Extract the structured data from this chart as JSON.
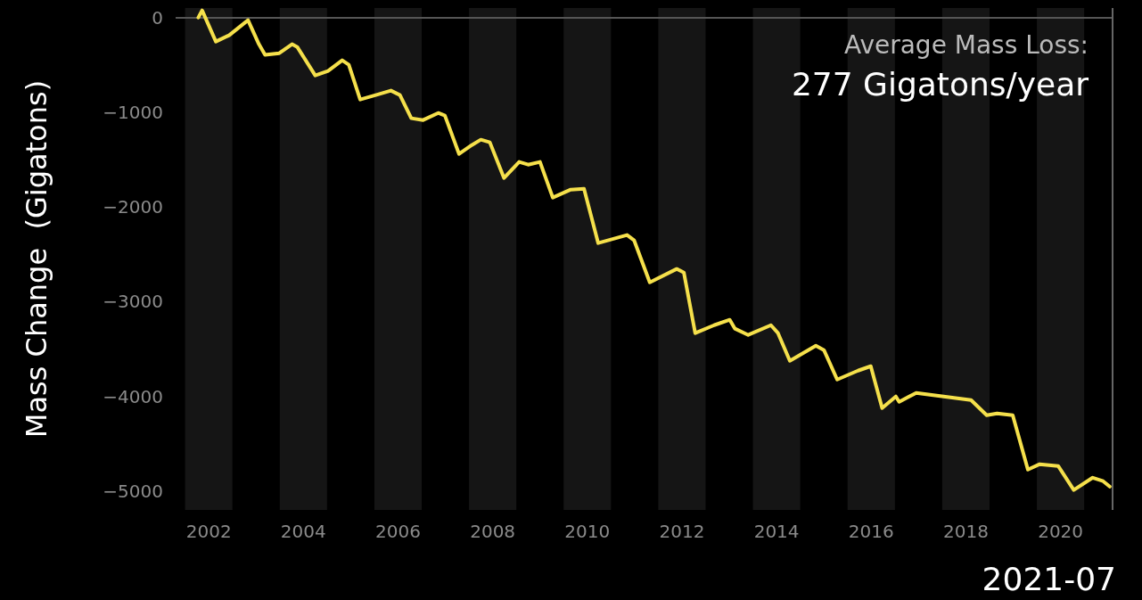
{
  "chart_data": {
    "type": "line",
    "ylabel": "Mass Change  (Gigatons)",
    "annotations": [
      "Average Mass Loss:",
      "277 Gigatons/year",
      "2021-07"
    ],
    "x": [
      2002.28,
      2002.36,
      2002.65,
      2002.93,
      2003.33,
      2003.56,
      2003.69,
      2003.99,
      2004.26,
      2004.37,
      2004.75,
      2005.02,
      2005.32,
      2005.46,
      2005.7,
      2006.03,
      2006.35,
      2006.54,
      2006.78,
      2007.03,
      2007.35,
      2007.49,
      2007.79,
      2008.06,
      2008.25,
      2008.44,
      2008.74,
      2009.06,
      2009.25,
      2009.5,
      2009.77,
      2010.15,
      2010.43,
      2010.73,
      2011.34,
      2011.49,
      2011.82,
      2012.39,
      2012.54,
      2012.78,
      2013.18,
      2013.51,
      2013.62,
      2013.9,
      2014.38,
      2014.53,
      2014.78,
      2015.33,
      2015.5,
      2015.78,
      2016.22,
      2016.49,
      2016.73,
      2017.02,
      2017.09,
      2017.45,
      2018.61,
      2018.94,
      2019.16,
      2019.49,
      2019.81,
      2020.06,
      2020.45,
      2020.78,
      2021.18,
      2021.4,
      2021.54
    ],
    "series": [
      {
        "color": "#f5e04b",
        "values": [
          0,
          75,
          -254,
          -188,
          -28,
          -282,
          -395,
          -377,
          -282,
          -311,
          -612,
          -565,
          -452,
          -499,
          -866,
          -819,
          -772,
          -819,
          -1064,
          -1083,
          -1008,
          -1036,
          -1441,
          -1347,
          -1290,
          -1318,
          -1695,
          -1525,
          -1554,
          -1525,
          -1902,
          -1817,
          -1808,
          -2382,
          -2297,
          -2354,
          -2797,
          -2655,
          -2693,
          -3333,
          -3249,
          -3192,
          -3286,
          -3352,
          -3249,
          -3333,
          -3625,
          -3465,
          -3512,
          -3823,
          -3729,
          -3682,
          -4124,
          -4002,
          -4058,
          -3964,
          -4040,
          -4200,
          -4181,
          -4200,
          -4774,
          -4717,
          -4736,
          -4990,
          -4859,
          -4896,
          -4953
        ]
      }
    ],
    "xlim": [
      2001.8,
      2021.6
    ],
    "ylim": [
      -5200,
      100
    ],
    "xticks": [
      {
        "value": 2002.5,
        "label": "2002"
      },
      {
        "value": 2004.5,
        "label": "2004"
      },
      {
        "value": 2006.5,
        "label": "2006"
      },
      {
        "value": 2008.5,
        "label": "2008"
      },
      {
        "value": 2010.5,
        "label": "2010"
      },
      {
        "value": 2012.5,
        "label": "2012"
      },
      {
        "value": 2014.5,
        "label": "2014"
      },
      {
        "value": 2016.5,
        "label": "2016"
      },
      {
        "value": 2018.5,
        "label": "2018"
      },
      {
        "value": 2020.5,
        "label": "2020"
      }
    ],
    "yticks": [
      0,
      -1000,
      -2000,
      -3000,
      -4000,
      -5000
    ],
    "bands": [
      {
        "axis": "x",
        "from": 2002,
        "to": 2003,
        "color": "#151515"
      },
      {
        "axis": "x",
        "from": 2004,
        "to": 2005,
        "color": "#151515"
      },
      {
        "axis": "x",
        "from": 2006,
        "to": 2007,
        "color": "#151515"
      },
      {
        "axis": "x",
        "from": 2008,
        "to": 2009,
        "color": "#151515"
      },
      {
        "axis": "x",
        "from": 2010,
        "to": 2011,
        "color": "#151515"
      },
      {
        "axis": "x",
        "from": 2012,
        "to": 2013,
        "color": "#151515"
      },
      {
        "axis": "x",
        "from": 2014,
        "to": 2015,
        "color": "#151515"
      },
      {
        "axis": "x",
        "from": 2016,
        "to": 2017,
        "color": "#151515"
      },
      {
        "axis": "x",
        "from": 2018,
        "to": 2019,
        "color": "#151515"
      },
      {
        "axis": "x",
        "from": 2020,
        "to": 2021,
        "color": "#151515"
      }
    ],
    "ref_lines": [
      {
        "axis": "y",
        "value": 0,
        "color": "#555555"
      }
    ],
    "grid": false,
    "marker": "none",
    "line_style": "solid"
  }
}
